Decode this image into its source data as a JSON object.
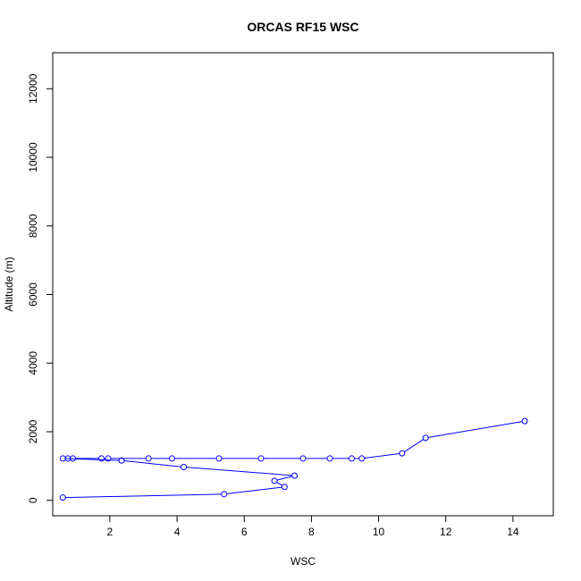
{
  "chart_data": {
    "type": "line",
    "title": "ORCAS RF15 WSC",
    "xlabel": "WSC",
    "ylabel": "Altitude (m)",
    "xlim": [
      0.3,
      15.2
    ],
    "ylim": [
      -450,
      13050
    ],
    "xticks": [
      2,
      4,
      6,
      8,
      10,
      12,
      14
    ],
    "yticks": [
      0,
      2000,
      4000,
      6000,
      8000,
      10000,
      12000
    ],
    "grid": false,
    "legend": "none",
    "series": [
      {
        "color": "#0000ff",
        "marker": "open-circle",
        "points": [
          {
            "x": 0.6,
            "y": 80
          },
          {
            "x": 5.4,
            "y": 180
          },
          {
            "x": 7.2,
            "y": 390
          },
          {
            "x": 6.9,
            "y": 570
          },
          {
            "x": 7.5,
            "y": 720
          },
          {
            "x": 4.2,
            "y": 970
          },
          {
            "x": 2.35,
            "y": 1160
          },
          {
            "x": 0.6,
            "y": 1220
          },
          {
            "x": 0.75,
            "y": 1220
          },
          {
            "x": 0.9,
            "y": 1220
          },
          {
            "x": 1.75,
            "y": 1220
          },
          {
            "x": 1.95,
            "y": 1220
          },
          {
            "x": 3.15,
            "y": 1220
          },
          {
            "x": 3.85,
            "y": 1220
          },
          {
            "x": 5.25,
            "y": 1220
          },
          {
            "x": 6.5,
            "y": 1220
          },
          {
            "x": 7.75,
            "y": 1220
          },
          {
            "x": 8.55,
            "y": 1220
          },
          {
            "x": 9.2,
            "y": 1220
          },
          {
            "x": 9.5,
            "y": 1220
          },
          {
            "x": 10.7,
            "y": 1370
          },
          {
            "x": 11.4,
            "y": 1820
          },
          {
            "x": 14.35,
            "y": 2310
          }
        ]
      }
    ]
  }
}
